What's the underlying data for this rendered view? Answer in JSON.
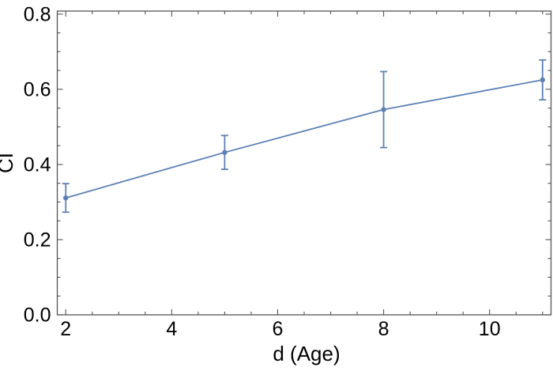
{
  "figure": {
    "description": "Line plot with error bars of CI versus age"
  },
  "chart_data": {
    "type": "line",
    "title": "",
    "xlabel": "d (Age)",
    "ylabel": "CI",
    "x": [
      2,
      5,
      8,
      11
    ],
    "y": [
      0.311,
      0.432,
      0.546,
      0.625
    ],
    "y_err": [
      0.038,
      0.045,
      0.101,
      0.053
    ],
    "marker": "filled-circle",
    "error_bars": true,
    "grid": false,
    "legend": null,
    "xlim": [
      1.84,
      11.16
    ],
    "ylim": [
      0,
      0.808
    ],
    "x_ticks": [
      2,
      4,
      6,
      8,
      10
    ],
    "x_tick_labels": [
      "2",
      "4",
      "6",
      "8",
      "10"
    ],
    "x_minor_step": 0.5,
    "y_ticks": [
      0,
      0.2,
      0.4,
      0.6,
      0.8
    ],
    "y_tick_labels": [
      "0.0",
      "0.2",
      "0.4",
      "0.6",
      "0.8"
    ],
    "y_minor_step": 0.05,
    "colors": {
      "series": "#5E81B5",
      "frame": "#555555",
      "tick_label": "#000000",
      "axis_label": "#000000",
      "background": "#FFFFFF"
    }
  }
}
